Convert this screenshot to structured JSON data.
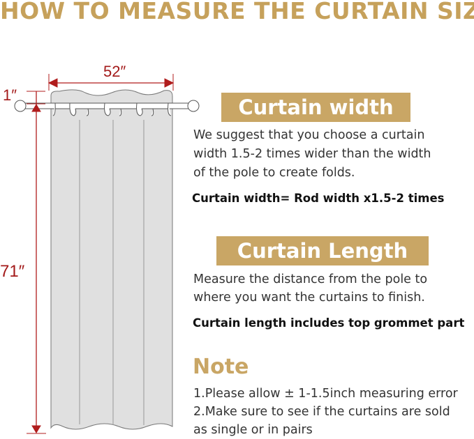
{
  "title": "HOW TO MEASURE THE CURTAIN SIZE",
  "diagram": {
    "width_label": "52″",
    "grommet_label": "1″",
    "length_label": "71″",
    "curtain_color": "#e0e0e0",
    "dimension_color": "#b01c1c"
  },
  "width_section": {
    "heading": "Curtain width",
    "lines": [
      "We suggest that you choose a curtain",
      "width 1.5-2 times wider than the width",
      "of the pole to create folds."
    ],
    "formula": "Curtain width= Rod width x1.5-2 times"
  },
  "length_section": {
    "heading": "Curtain Length",
    "lines": [
      "Measure the distance from the pole to",
      "where you want the curtains to finish."
    ],
    "formula": "Curtain length includes top grommet part"
  },
  "note": {
    "heading": "Note",
    "lines": [
      "1.Please allow ± 1-1.5inch measuring error",
      "2.Make sure to see if the curtains are sold",
      "as single or in pairs"
    ]
  },
  "accent_color": "#c9a665"
}
